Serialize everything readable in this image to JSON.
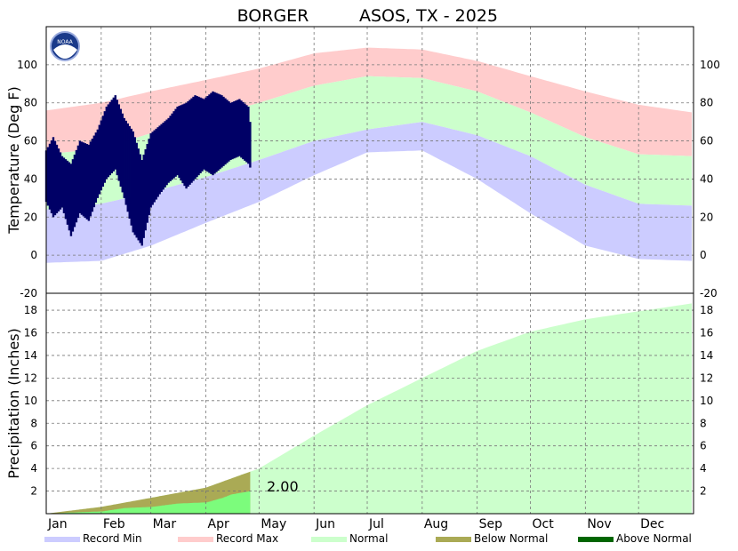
{
  "chart_data": {
    "type": "area",
    "title": {
      "station": "BORGER",
      "network_year": "ASOS, TX - 2025"
    },
    "months": [
      "Jan",
      "Feb",
      "Mar",
      "Apr",
      "May",
      "Jun",
      "Jul",
      "Aug",
      "Sep",
      "Oct",
      "Nov",
      "Dec"
    ],
    "temperature": {
      "ylabel": "Temperature (Deg F)",
      "ylim": [
        -20,
        120
      ],
      "yticks": [
        -20,
        0,
        20,
        40,
        60,
        80,
        100
      ],
      "grid": true,
      "normal_high": {
        "x": [
          1,
          32,
          60,
          91,
          121,
          152,
          182,
          213,
          244,
          274,
          305,
          335,
          365
        ],
        "y": [
          53,
          56,
          64,
          72,
          80,
          89,
          94,
          93,
          86,
          75,
          62,
          53,
          52
        ]
      },
      "normal_low": {
        "x": [
          1,
          32,
          60,
          91,
          121,
          152,
          182,
          213,
          244,
          274,
          305,
          335,
          365
        ],
        "y": [
          24,
          27,
          33,
          41,
          50,
          60,
          66,
          70,
          63,
          52,
          37,
          27,
          26
        ]
      },
      "record_max": {
        "x": [
          1,
          32,
          60,
          91,
          121,
          152,
          182,
          213,
          244,
          274,
          305,
          335,
          365
        ],
        "y": [
          76,
          80,
          86,
          92,
          98,
          106,
          109,
          108,
          102,
          94,
          86,
          79,
          75
        ]
      },
      "record_min": {
        "x": [
          1,
          32,
          60,
          91,
          121,
          152,
          182,
          213,
          244,
          274,
          305,
          335,
          365
        ],
        "y": [
          -4,
          -3,
          5,
          17,
          28,
          42,
          54,
          55,
          40,
          22,
          5,
          -2,
          -3
        ]
      },
      "observed_2025": {
        "x": [
          1,
          5,
          10,
          15,
          20,
          25,
          30,
          35,
          40,
          45,
          50,
          55,
          60,
          65,
          70,
          75,
          80,
          85,
          90,
          95,
          100,
          105,
          110,
          115,
          116
        ],
        "high": [
          55,
          62,
          52,
          48,
          60,
          58,
          66,
          78,
          84,
          72,
          65,
          50,
          64,
          68,
          72,
          78,
          80,
          84,
          82,
          86,
          84,
          80,
          82,
          78,
          70
        ],
        "low": [
          28,
          20,
          25,
          10,
          22,
          18,
          30,
          40,
          45,
          30,
          12,
          5,
          25,
          32,
          38,
          42,
          35,
          40,
          45,
          42,
          46,
          50,
          52,
          48,
          46
        ]
      }
    },
    "precipitation": {
      "ylabel": "Precipitation (Inches)",
      "ylim": [
        0,
        19.5
      ],
      "yticks": [
        2,
        4,
        6,
        8,
        10,
        12,
        14,
        16,
        18
      ],
      "grid": true,
      "normal_cumulative": {
        "x": [
          1,
          32,
          60,
          91,
          121,
          152,
          182,
          213,
          244,
          274,
          305,
          335,
          365
        ],
        "y": [
          0,
          0.6,
          1.4,
          2.3,
          4.0,
          6.9,
          9.6,
          12.0,
          14.4,
          16.1,
          17.2,
          17.9,
          18.6
        ]
      },
      "observed_cumulative": {
        "x": [
          1,
          15,
          32,
          45,
          60,
          75,
          91,
          100,
          105,
          116
        ],
        "y": [
          0,
          0.1,
          0.2,
          0.5,
          0.6,
          0.9,
          1.0,
          1.4,
          1.7,
          2.0
        ]
      },
      "ytd_label": "2.00"
    },
    "legend": [
      {
        "label": "Record Min",
        "color": "#ccccff"
      },
      {
        "label": "Record Max",
        "color": "#ffcccc"
      },
      {
        "label": "Normal",
        "color": "#ccffcc"
      },
      {
        "label": "Below Normal",
        "color": "#aaaa55"
      },
      {
        "label": "Above Normal",
        "color": "#006600"
      }
    ],
    "colors": {
      "observed": "#000066",
      "observed_precip": "#7cfc7c"
    }
  }
}
